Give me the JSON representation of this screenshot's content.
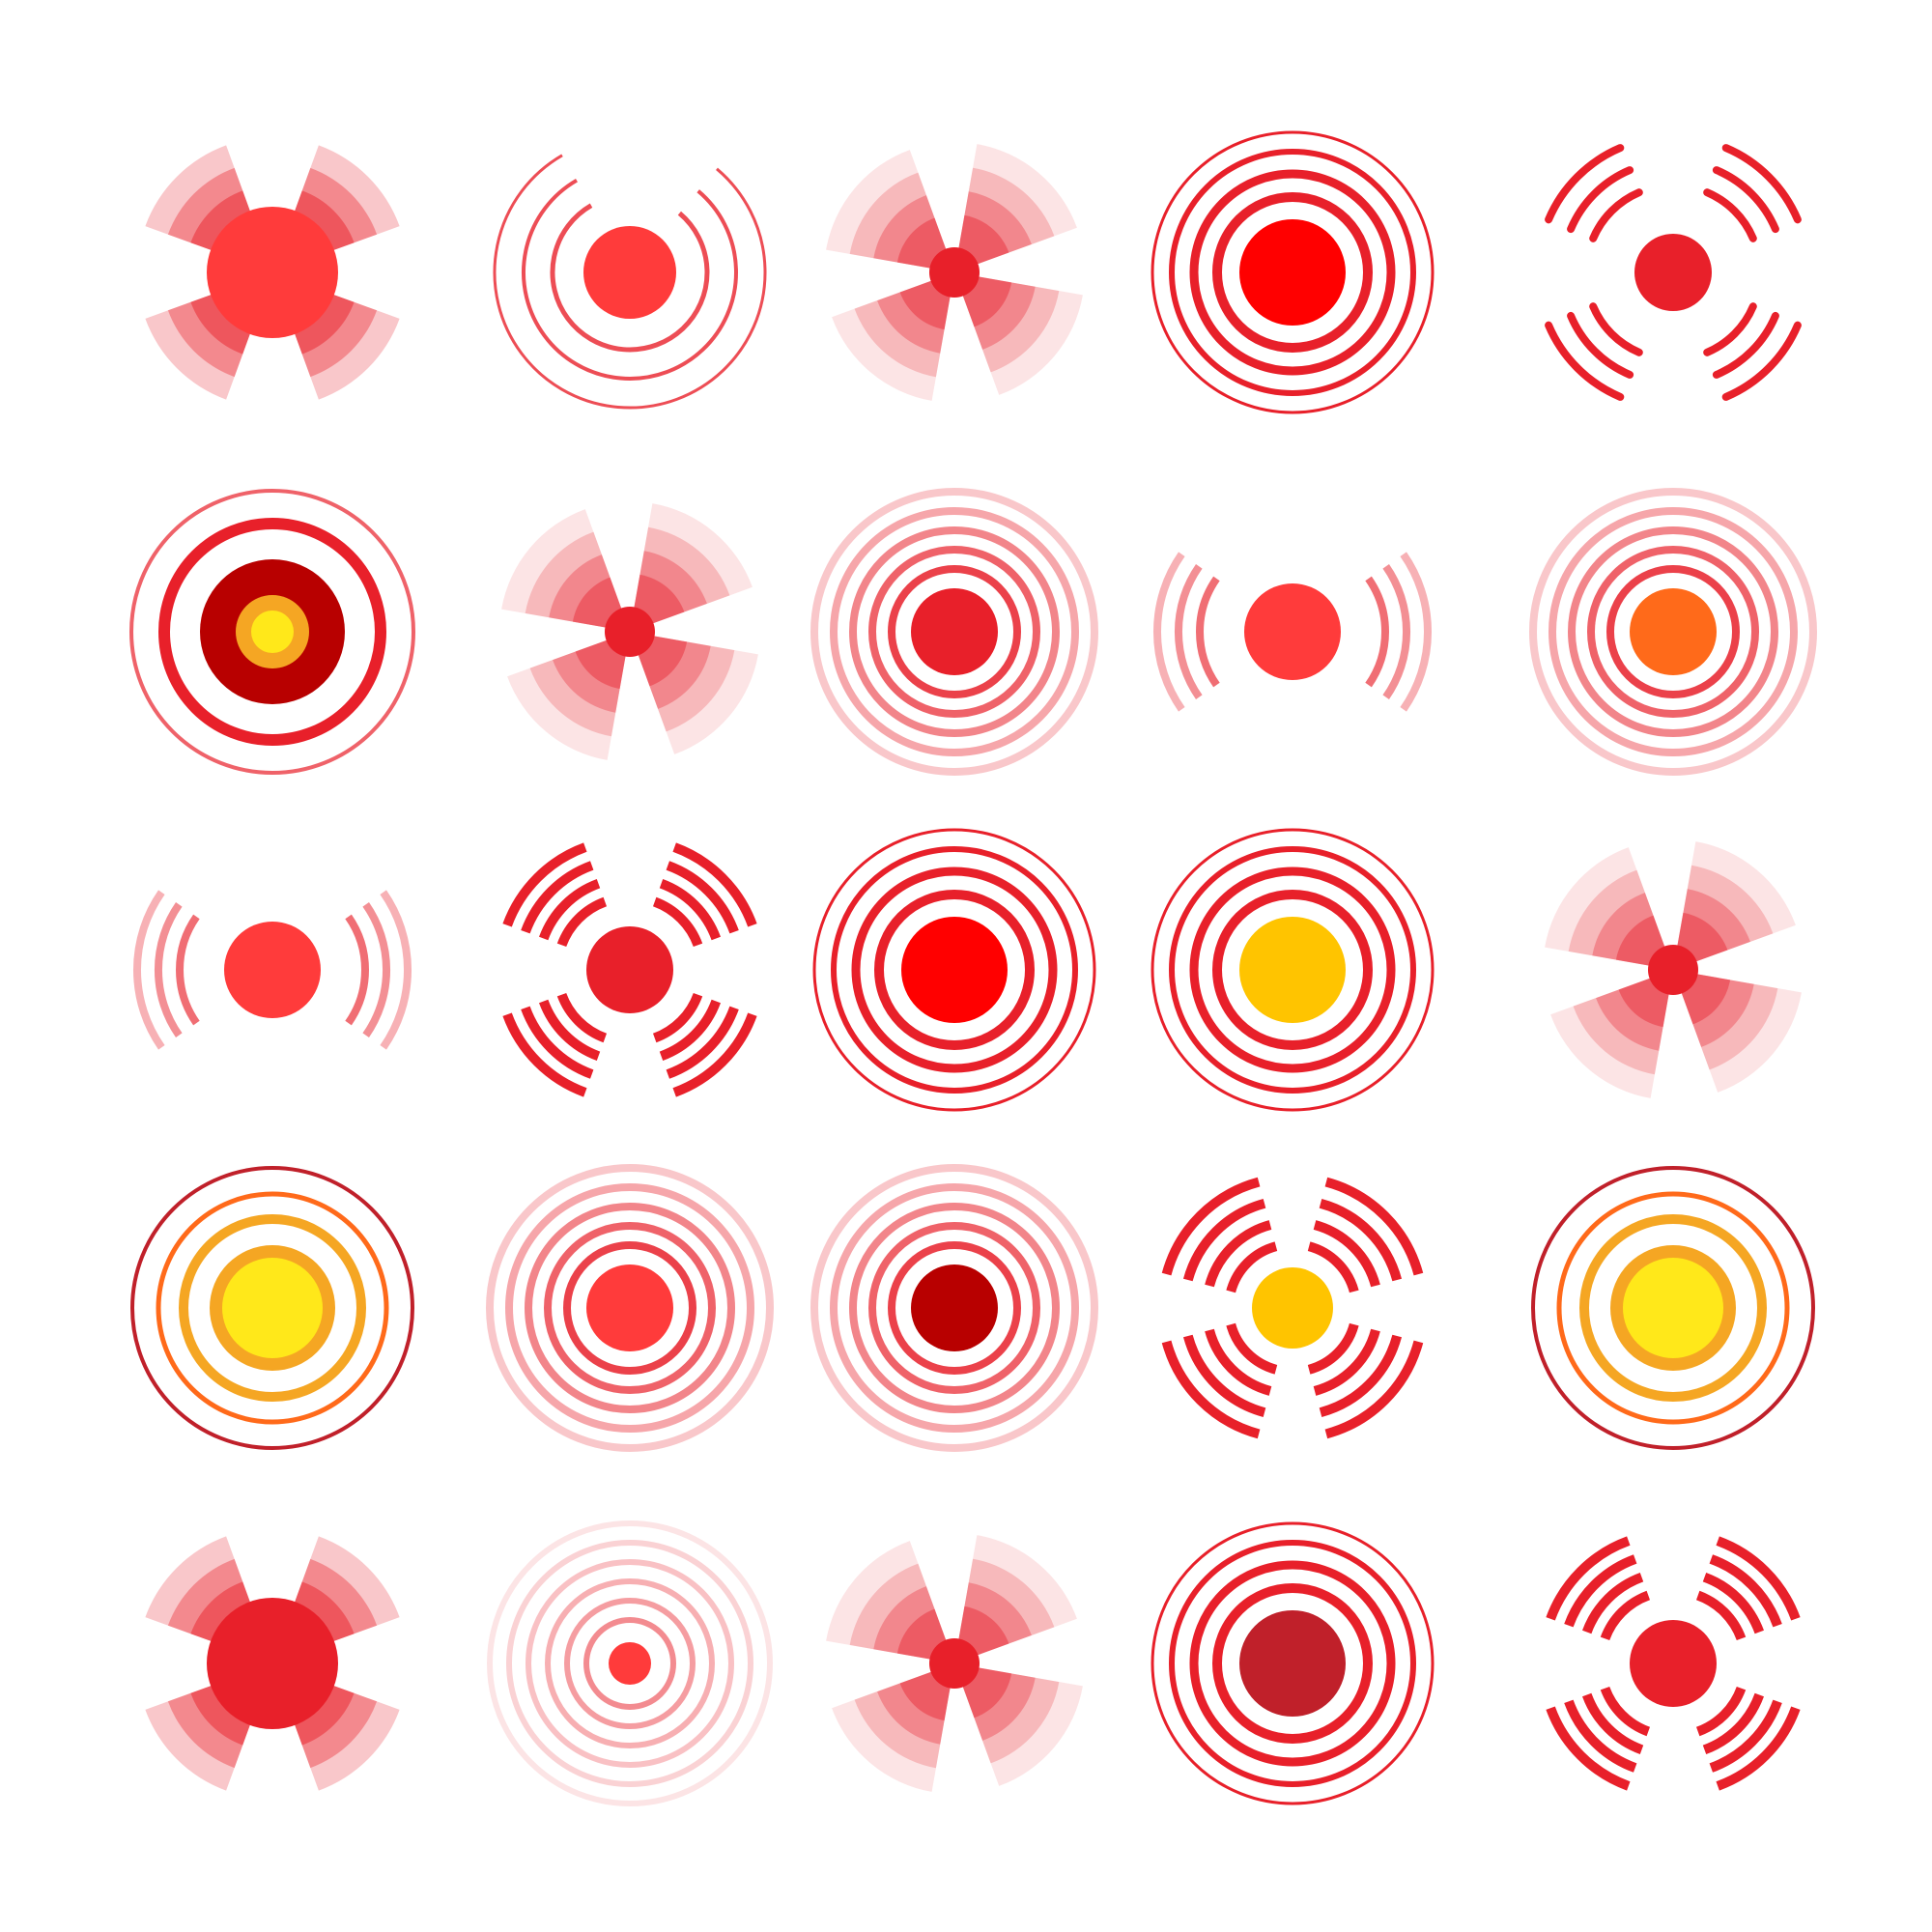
{
  "palette": {
    "red": "#e8202a",
    "bright_red": "#ff0000",
    "coral": "#ff3b3b",
    "dark_red": "#b80000",
    "crimson": "#c0202a",
    "orange": "#f5a623",
    "deep_orange": "#ff6a1a",
    "yellow": "#ffe81a",
    "gold": "#ffc400",
    "pale_red": "#f4a0a0",
    "background": "#ffffff"
  },
  "icons": [
    {
      "name": "pain-cross-blob-icon",
      "style": "cross",
      "center": "coral",
      "ring": "red"
    },
    {
      "name": "pain-circles-open-icon",
      "style": "openrings",
      "center": "coral",
      "ring": "red"
    },
    {
      "name": "pain-cross-fade-icon",
      "style": "crossfade",
      "center": "red",
      "ring": "red"
    },
    {
      "name": "pain-target-bold-icon",
      "style": "rings",
      "center": "bright_red",
      "ring": "red"
    },
    {
      "name": "pain-x-arcs-icon",
      "style": "xarcs",
      "center": "red",
      "ring": "red"
    },
    {
      "name": "pain-target-yellow-core-icon",
      "style": "target",
      "center": "yellow",
      "ring": "red"
    },
    {
      "name": "pain-cross-soft-icon",
      "style": "crossfade",
      "center": "red",
      "ring": "red"
    },
    {
      "name": "pain-rings-soft-icon",
      "style": "softrings",
      "center": "red",
      "ring": "red"
    },
    {
      "name": "pain-side-waves-icon",
      "style": "sidewaves",
      "center": "coral",
      "ring": "red"
    },
    {
      "name": "pain-rings-orange-core-icon",
      "style": "softrings",
      "center": "deep_orange",
      "ring": "red"
    },
    {
      "name": "pain-side-waves-small-icon",
      "style": "sidewaves",
      "center": "coral",
      "ring": "red"
    },
    {
      "name": "pain-x-stripes-icon",
      "style": "xstripes",
      "center": "red",
      "ring": "red"
    },
    {
      "name": "pain-target-bright-icon",
      "style": "rings",
      "center": "bright_red",
      "ring": "red"
    },
    {
      "name": "pain-target-gold-core-icon",
      "style": "rings",
      "center": "gold",
      "ring": "red"
    },
    {
      "name": "pain-cross-glow-icon",
      "style": "crossfade",
      "center": "red",
      "ring": "red"
    },
    {
      "name": "pain-target-orange-icon",
      "style": "orangerings",
      "center": "yellow",
      "ring": "orange"
    },
    {
      "name": "pain-rings-thin-icon",
      "style": "softrings",
      "center": "coral",
      "ring": "red"
    },
    {
      "name": "pain-target-dark-core-icon",
      "style": "softrings",
      "center": "dark_red",
      "ring": "red"
    },
    {
      "name": "pain-cross-stripes-yellow-icon",
      "style": "crossstripes",
      "center": "gold",
      "ring": "red"
    },
    {
      "name": "pain-target-orange-alt-icon",
      "style": "orangerings",
      "center": "yellow",
      "ring": "orange"
    },
    {
      "name": "pain-cross-blob-alt-icon",
      "style": "cross",
      "center": "red",
      "ring": "red"
    },
    {
      "name": "pain-rings-faint-icon",
      "style": "faintrings",
      "center": "coral",
      "ring": "red"
    },
    {
      "name": "pain-cross-fade-alt-icon",
      "style": "crossfade",
      "center": "red",
      "ring": "red"
    },
    {
      "name": "pain-target-crimson-icon",
      "style": "rings",
      "center": "crimson",
      "ring": "red"
    },
    {
      "name": "pain-x-arcs-alt-icon",
      "style": "xstripes",
      "center": "red",
      "ring": "red"
    }
  ]
}
